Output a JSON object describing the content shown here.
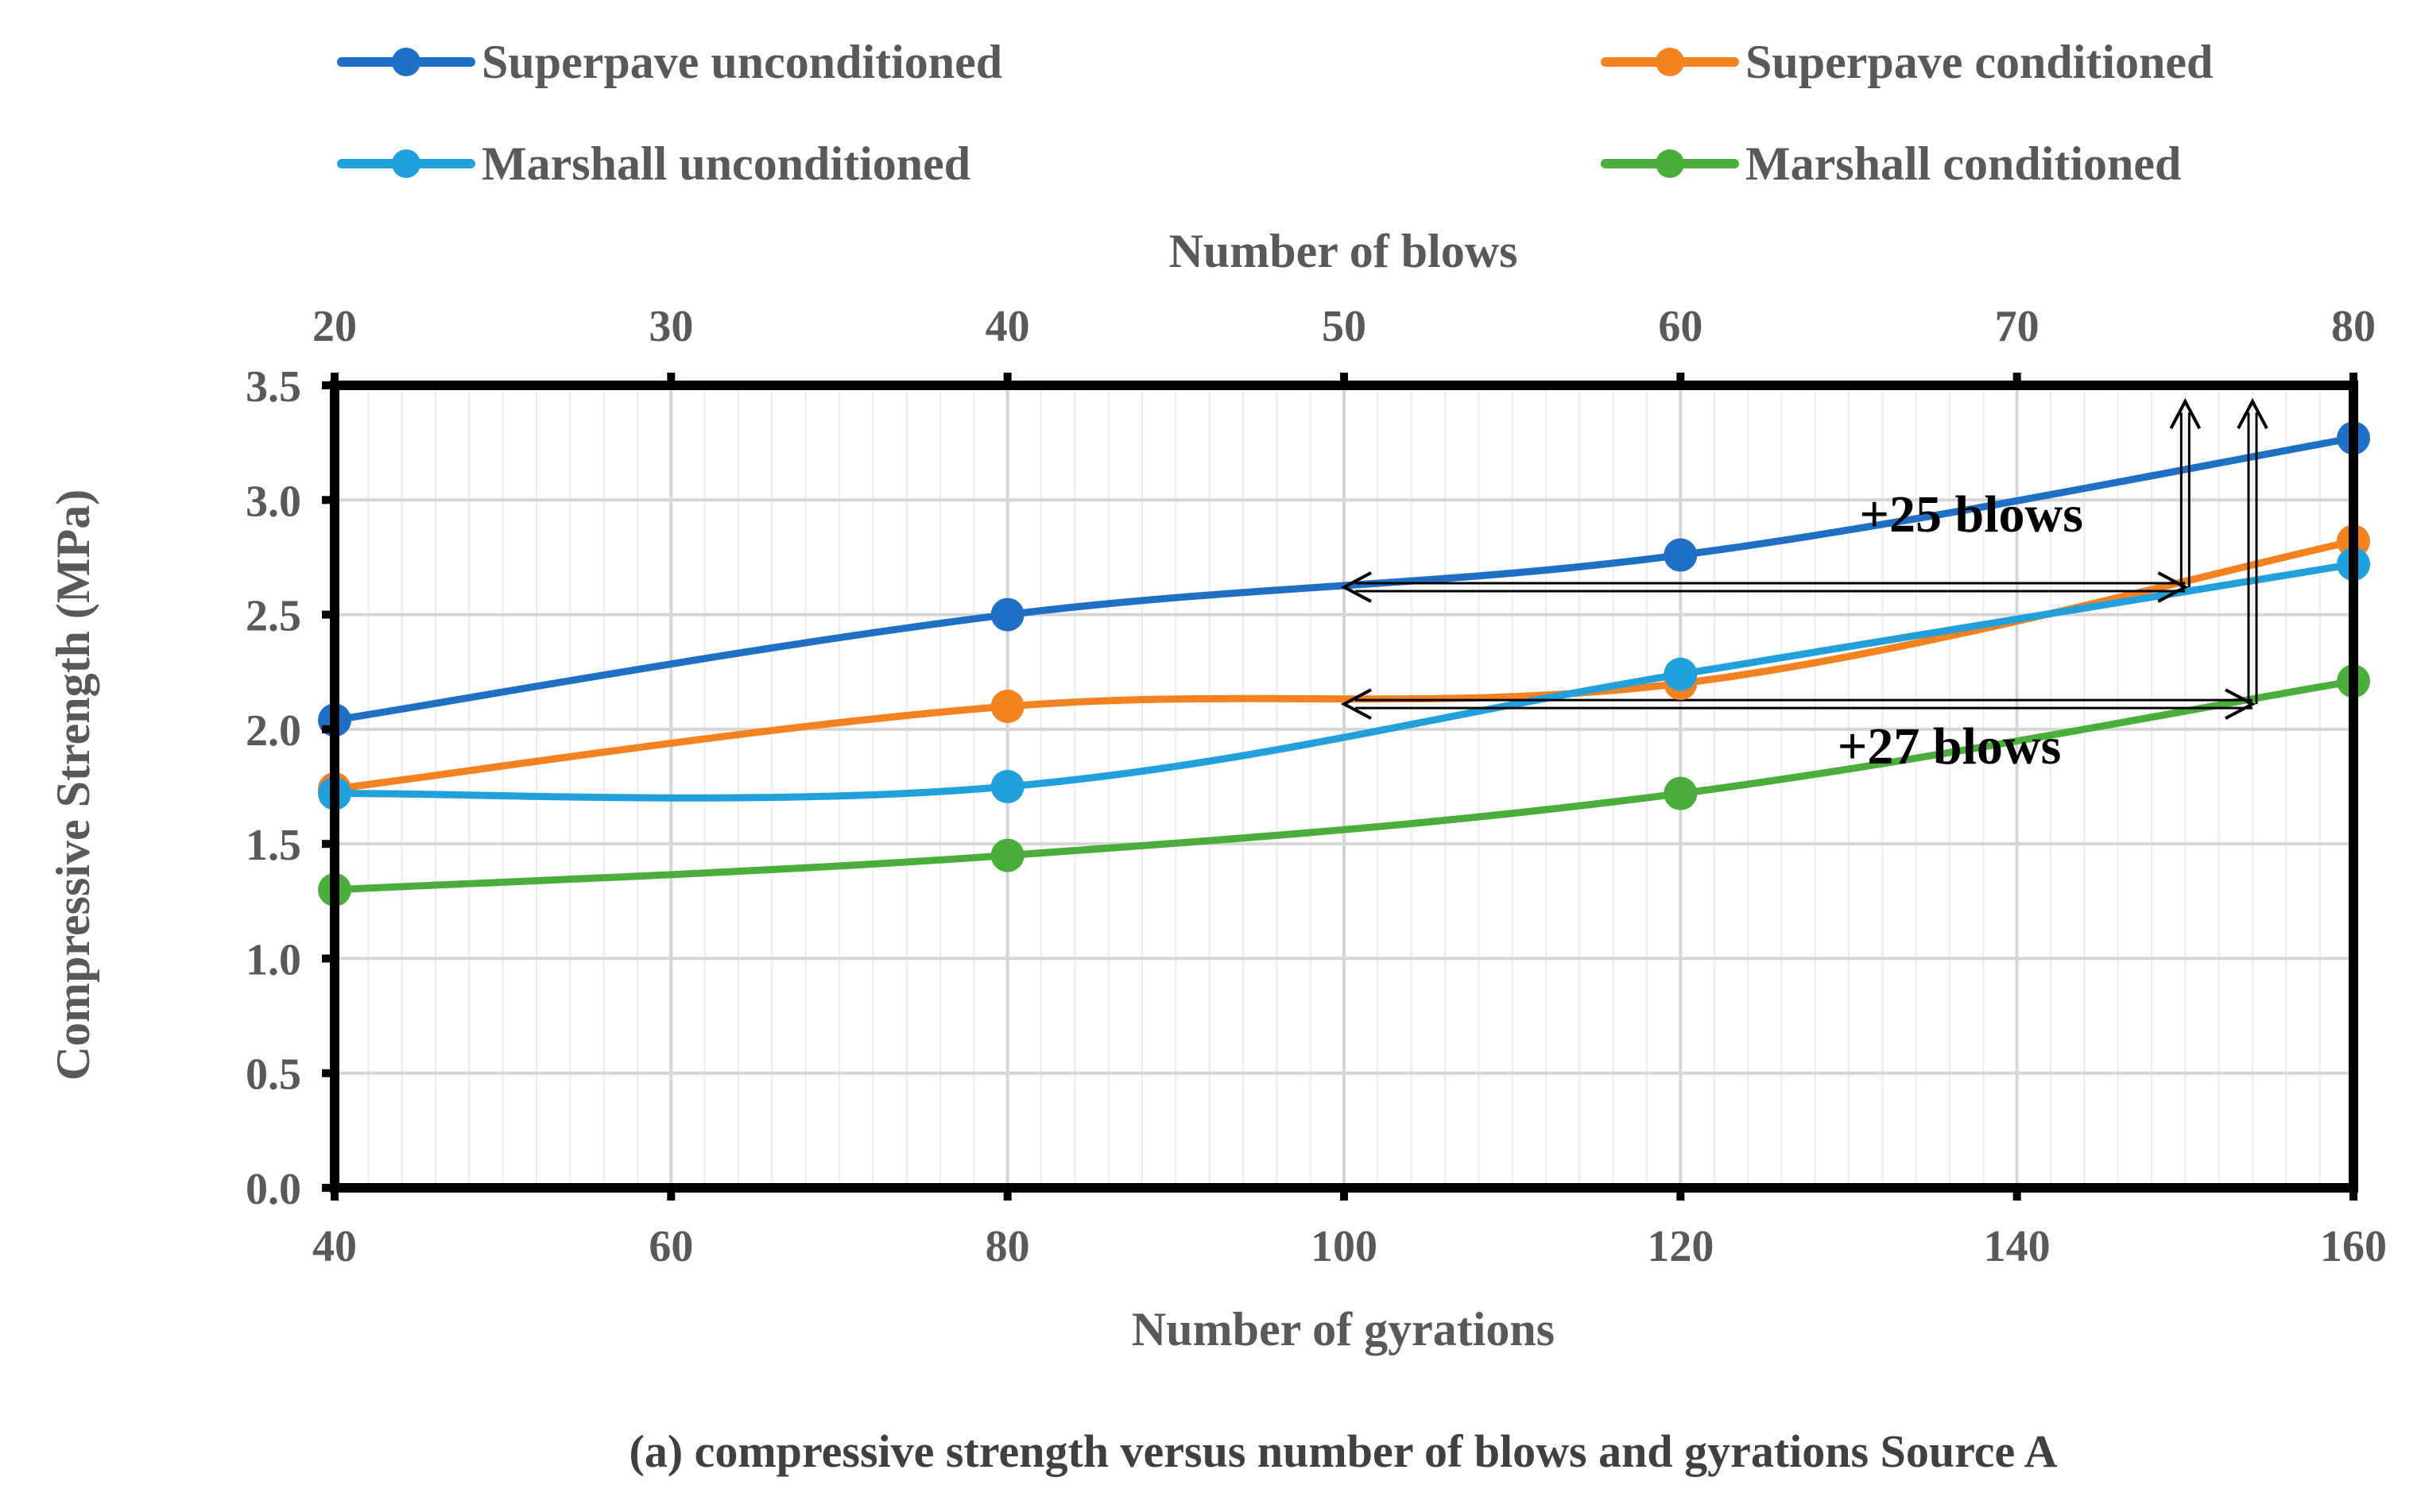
{
  "chart_data": {
    "type": "line",
    "caption": "(a) compressive strength versus number of blows and gyrations Source A",
    "xlabel": "Number of gyrations",
    "x2label": "Number of blows",
    "ylabel": "Compressive Strength (MPa)",
    "xlim": [
      40,
      160
    ],
    "x2lim": [
      20,
      80
    ],
    "ylim": [
      0,
      3.5
    ],
    "xticks": [
      40,
      60,
      80,
      100,
      120,
      140,
      160
    ],
    "x2ticks": [
      20,
      30,
      40,
      50,
      60,
      70,
      80
    ],
    "yticks": [
      "0.0",
      "0.5",
      "1.0",
      "1.5",
      "2.0",
      "2.5",
      "3.0",
      "3.5"
    ],
    "grid": true,
    "legend_position": "top",
    "series": [
      {
        "name": "Superpave unconditioned",
        "color": "#1F6FC5",
        "x": [
          40,
          80,
          120,
          160
        ],
        "values": [
          2.04,
          2.5,
          2.76,
          3.27
        ]
      },
      {
        "name": "Superpave conditioned",
        "color": "#F58220",
        "x": [
          40,
          80,
          120,
          160
        ],
        "values": [
          1.74,
          2.1,
          2.2,
          2.82
        ]
      },
      {
        "name": "Marshall unconditioned",
        "color": "#22A0DC",
        "x": [
          40,
          80,
          120,
          160
        ],
        "values": [
          1.72,
          1.75,
          2.24,
          2.72
        ]
      },
      {
        "name": "Marshall conditioned",
        "color": "#4BAE3C",
        "x": [
          40,
          80,
          120,
          160
        ],
        "values": [
          1.3,
          1.45,
          1.72,
          2.21
        ]
      }
    ],
    "annotations": [
      {
        "text": "+25 blows",
        "y_level": 2.62,
        "x_from": 100,
        "x_to": 150
      },
      {
        "text": "+27 blows",
        "y_level": 2.11,
        "x_from": 100,
        "x_to": 154
      }
    ]
  }
}
